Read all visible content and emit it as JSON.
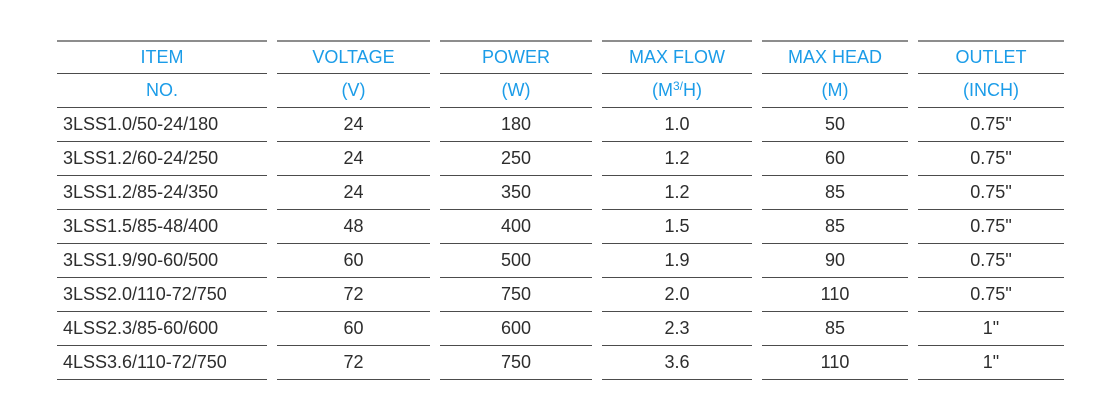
{
  "colors": {
    "header_text": "#1b9ce8",
    "body_text": "#2d2d2d",
    "row_line": "#4c4c4c",
    "top_line": "#8d8d8d"
  },
  "table": {
    "headers": {
      "item": {
        "line1": "ITEM",
        "line2": "NO."
      },
      "voltage": {
        "line1": "VOLTAGE",
        "line2": "(V)"
      },
      "power": {
        "line1": "POWER",
        "line2": "(W)"
      },
      "max_flow": {
        "line1": "MAX FLOW",
        "unit_pre": "(M",
        "unit_sup": "3/",
        "unit_post": "H)"
      },
      "max_head": {
        "line1": "MAX HEAD",
        "line2": "(M)"
      },
      "outlet": {
        "line1": "OUTLET",
        "line2": "(INCH)"
      }
    },
    "rows": [
      {
        "item": "3LSS1.0/50-24/180",
        "voltage": "24",
        "power": "180",
        "max_flow": "1.0",
        "max_head": "50",
        "outlet": "0.75\""
      },
      {
        "item": "3LSS1.2/60-24/250",
        "voltage": "24",
        "power": "250",
        "max_flow": "1.2",
        "max_head": "60",
        "outlet": "0.75\""
      },
      {
        "item": "3LSS1.2/85-24/350",
        "voltage": "24",
        "power": "350",
        "max_flow": "1.2",
        "max_head": "85",
        "outlet": "0.75\""
      },
      {
        "item": "3LSS1.5/85-48/400",
        "voltage": "48",
        "power": "400",
        "max_flow": "1.5",
        "max_head": "85",
        "outlet": "0.75\""
      },
      {
        "item": "3LSS1.9/90-60/500",
        "voltage": "60",
        "power": "500",
        "max_flow": "1.9",
        "max_head": "90",
        "outlet": "0.75\""
      },
      {
        "item": "3LSS2.0/110-72/750",
        "voltage": "72",
        "power": "750",
        "max_flow": "2.0",
        "max_head": "110",
        "outlet": "0.75\""
      },
      {
        "item": "4LSS2.3/85-60/600",
        "voltage": "60",
        "power": "600",
        "max_flow": "2.3",
        "max_head": "85",
        "outlet": "1\""
      },
      {
        "item": "4LSS3.6/110-72/750",
        "voltage": "72",
        "power": "750",
        "max_flow": "3.6",
        "max_head": "110",
        "outlet": "1\""
      }
    ]
  },
  "chart_data": {
    "type": "table",
    "columns": [
      "ITEM NO.",
      "VOLTAGE (V)",
      "POWER (W)",
      "MAX FLOW (M3/H)",
      "MAX HEAD (M)",
      "OUTLET (INCH)"
    ],
    "rows": [
      [
        "3LSS1.0/50-24/180",
        24,
        180,
        1.0,
        50,
        "0.75\""
      ],
      [
        "3LSS1.2/60-24/250",
        24,
        250,
        1.2,
        60,
        "0.75\""
      ],
      [
        "3LSS1.2/85-24/350",
        24,
        350,
        1.2,
        85,
        "0.75\""
      ],
      [
        "3LSS1.5/85-48/400",
        48,
        400,
        1.5,
        85,
        "0.75\""
      ],
      [
        "3LSS1.9/90-60/500",
        60,
        500,
        1.9,
        90,
        "0.75\""
      ],
      [
        "3LSS2.0/110-72/750",
        72,
        750,
        2.0,
        110,
        "0.75\""
      ],
      [
        "4LSS2.3/85-60/600",
        60,
        600,
        2.3,
        85,
        "1\""
      ],
      [
        "4LSS3.6/110-72/750",
        72,
        750,
        3.6,
        110,
        "1\""
      ]
    ]
  }
}
